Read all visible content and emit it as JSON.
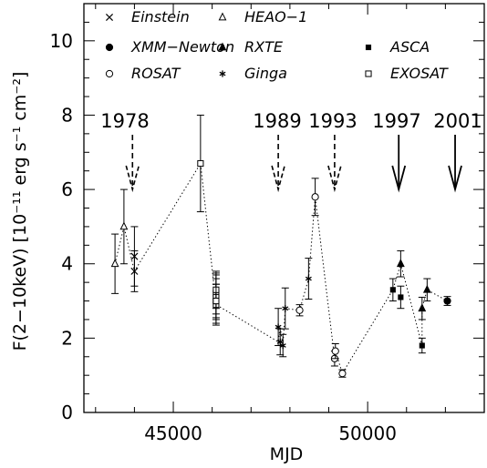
{
  "chart_data": {
    "type": "scatter",
    "xlabel": "MJD",
    "ylabel": "F(2−10keV)  [10⁻¹¹ erg s⁻¹ cm⁻²]",
    "xlim": [
      42700,
      53000
    ],
    "ylim": [
      0,
      11
    ],
    "xticks": [
      45000,
      50000
    ],
    "yticks": [
      0,
      2,
      4,
      6,
      8,
      10
    ],
    "series": [
      {
        "name": "Einstein",
        "marker": "cross",
        "points": [
          [
            44000,
            4.2,
            0.8
          ],
          [
            44000,
            3.8,
            0.55
          ]
        ]
      },
      {
        "name": "HEAO−1",
        "marker": "triangle-open",
        "points": [
          [
            43500,
            4.0,
            0.8
          ],
          [
            43730,
            5.0,
            1.0
          ]
        ]
      },
      {
        "name": "XMM−Newton",
        "marker": "circle-filled",
        "points": [
          [
            52050,
            3.0,
            0.12
          ]
        ]
      },
      {
        "name": "RXTE",
        "marker": "triangle-filled",
        "points": [
          [
            50850,
            4.0,
            0.35
          ],
          [
            51400,
            2.8,
            0.3
          ],
          [
            51530,
            3.3,
            0.3
          ]
        ]
      },
      {
        "name": "ASCA",
        "marker": "square-filled",
        "points": [
          [
            50650,
            3.3,
            0.3
          ],
          [
            50850,
            3.1,
            0.3
          ],
          [
            51400,
            1.8,
            0.2
          ]
        ]
      },
      {
        "name": "ROSAT",
        "marker": "circle-open",
        "points": [
          [
            48250,
            2.75,
            0.15
          ],
          [
            48650,
            5.8,
            0.5
          ],
          [
            49150,
            1.45,
            0.2
          ],
          [
            49170,
            1.65,
            0.2
          ],
          [
            49350,
            1.05,
            0.1
          ]
        ]
      },
      {
        "name": "Ginga",
        "marker": "star",
        "points": [
          [
            47700,
            2.3,
            0.5
          ],
          [
            47750,
            1.9,
            0.35
          ],
          [
            47820,
            1.8,
            0.3
          ],
          [
            47880,
            2.8,
            0.55
          ],
          [
            48480,
            3.6,
            0.55
          ]
        ]
      },
      {
        "name": "EXOSAT",
        "marker": "square-open",
        "points": [
          [
            45700,
            6.7,
            1.3
          ],
          [
            46100,
            3.2,
            0.55
          ],
          [
            46100,
            3.1,
            0.6
          ],
          [
            46100,
            2.9,
            0.55
          ],
          [
            46100,
            3.0,
            0.45
          ],
          [
            46100,
            3.3,
            0.5
          ],
          [
            46100,
            3.0,
            0.6
          ]
        ]
      }
    ],
    "connecting_line_x": [
      43500,
      43730,
      44000,
      45700,
      46100,
      47700,
      47750,
      47820,
      47880,
      48250,
      48480,
      48650,
      49150,
      49170,
      49350,
      50650,
      50850,
      51400,
      51400,
      51530,
      52050
    ],
    "connecting_line_y": [
      4.0,
      5.0,
      3.8,
      6.7,
      2.9,
      1.9,
      2.3,
      1.8,
      2.8,
      2.75,
      3.6,
      5.8,
      1.45,
      1.65,
      1.05,
      3.3,
      4.0,
      1.8,
      2.8,
      3.3,
      3.0
    ],
    "epoch_markers": [
      {
        "label": "1978",
        "x": 43950,
        "style": "dashed"
      },
      {
        "label": "1989",
        "x": 47700,
        "style": "dashed"
      },
      {
        "label": "1993",
        "x": 49150,
        "style": "dashed"
      },
      {
        "label": "1997",
        "x": 50800,
        "style": "solid"
      },
      {
        "label": "2001",
        "x": 52250,
        "style": "solid"
      }
    ],
    "legend_placement": "top-left"
  }
}
